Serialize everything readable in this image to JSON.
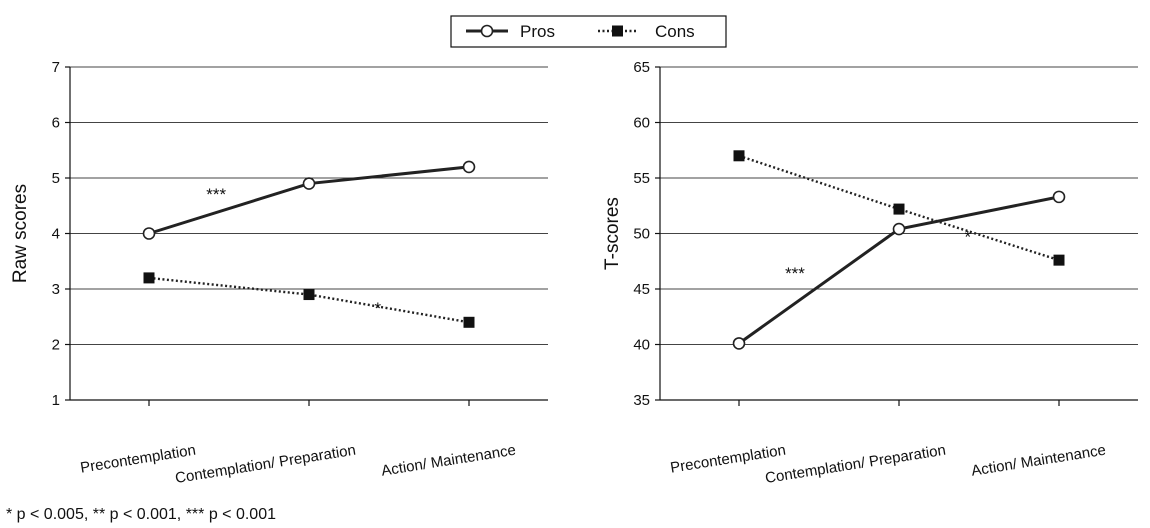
{
  "legend": {
    "items": [
      {
        "label": "Pros",
        "style": "solid",
        "marker": "open-circle"
      },
      {
        "label": "Cons",
        "style": "dotted",
        "marker": "filled-square"
      }
    ]
  },
  "footnote": "* p < 0.005, ** p < 0.001, *** p < 0.001",
  "colors": {
    "line": "#222222",
    "grid": "#444444",
    "marker_fill": "#111111"
  },
  "chart_data": [
    {
      "type": "line",
      "title": "",
      "xlabel": "",
      "ylabel": "Raw scores",
      "categories": [
        "Precontemplation",
        "Contemplation/ Preparation",
        "Action/ Maintenance"
      ],
      "ylim": [
        1,
        7
      ],
      "yticks": [
        1,
        2,
        3,
        4,
        5,
        6,
        7
      ],
      "grid": true,
      "series": [
        {
          "name": "Pros",
          "values": [
            4.0,
            4.9,
            5.2
          ],
          "style": "solid",
          "marker": "open-circle"
        },
        {
          "name": "Cons",
          "values": [
            3.2,
            2.9,
            2.4
          ],
          "style": "dotted",
          "marker": "filled-square"
        }
      ],
      "annotations": [
        {
          "text": "***",
          "x": 0.42,
          "y": 4.6
        },
        {
          "text": "*",
          "x": 1.43,
          "y": 2.55
        }
      ]
    },
    {
      "type": "line",
      "title": "",
      "xlabel": "",
      "ylabel": "T-scores",
      "categories": [
        "Precontemplation",
        "Contemplation/ Preparation",
        "Action/ Maintenance"
      ],
      "ylim": [
        35,
        65
      ],
      "yticks": [
        35,
        40,
        45,
        50,
        55,
        60,
        65
      ],
      "grid": true,
      "series": [
        {
          "name": "Pros",
          "values": [
            40.1,
            50.4,
            53.3
          ],
          "style": "solid",
          "marker": "open-circle"
        },
        {
          "name": "Cons",
          "values": [
            57.0,
            52.2,
            47.6
          ],
          "style": "dotted",
          "marker": "filled-square"
        }
      ],
      "annotations": [
        {
          "text": "***",
          "x": 0.35,
          "y": 45.9
        },
        {
          "text": "*",
          "x": 1.43,
          "y": 49.2
        }
      ]
    }
  ]
}
